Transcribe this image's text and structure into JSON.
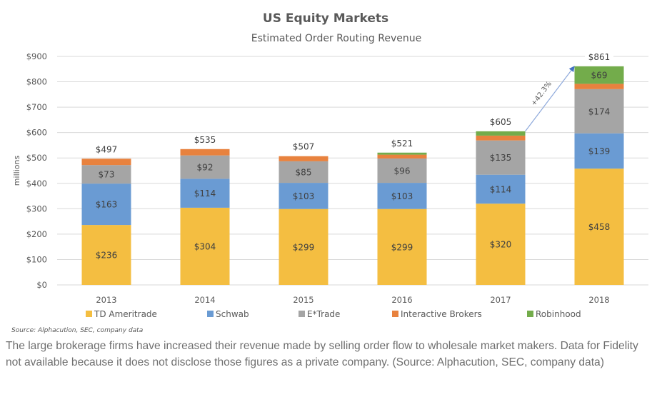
{
  "chart_data": {
    "type": "bar",
    "stacked": true,
    "title": "US Equity Markets",
    "subtitle": "Estimated Order Routing Revenue",
    "xlabel": "",
    "ylabel": "millions",
    "ylim": [
      0,
      900
    ],
    "yticks": [
      0,
      100,
      200,
      300,
      400,
      500,
      600,
      700,
      800,
      900
    ],
    "ytick_labels": [
      "$0",
      "$100",
      "$200",
      "$300",
      "$400",
      "$500",
      "$600",
      "$700",
      "$800",
      "$900"
    ],
    "grid": true,
    "legend_position": "bottom",
    "categories": [
      "2013",
      "2014",
      "2015",
      "2016",
      "2017",
      "2018"
    ],
    "series": [
      {
        "name": "TD Ameritrade",
        "color": "#F4BE41",
        "values": [
          236,
          304,
          299,
          299,
          320,
          458
        ],
        "labels": [
          "$236",
          "$304",
          "$299",
          "$299",
          "$320",
          "$458"
        ]
      },
      {
        "name": "Schwab",
        "color": "#6A9BD3",
        "values": [
          163,
          114,
          103,
          103,
          114,
          139
        ],
        "labels": [
          "$163",
          "$114",
          "$103",
          "$103",
          "$114",
          "$139"
        ]
      },
      {
        "name": "E*Trade",
        "color": "#A5A5A5",
        "values": [
          73,
          92,
          85,
          96,
          135,
          174
        ],
        "labels": [
          "$73",
          "$92",
          "$85",
          "$96",
          "$135",
          "$174"
        ]
      },
      {
        "name": "Interactive Brokers",
        "color": "#E8823E",
        "values": [
          25,
          25,
          20,
          15,
          19,
          21
        ],
        "labels": [
          "",
          "",
          "",
          "",
          "",
          ""
        ]
      },
      {
        "name": "Robinhood",
        "color": "#73AC4B",
        "values": [
          0,
          0,
          0,
          8,
          17,
          69
        ],
        "labels": [
          "",
          "",
          "",
          "",
          "",
          "$69"
        ]
      }
    ],
    "totals": [
      497,
      535,
      507,
      521,
      605,
      861
    ],
    "total_labels": [
      "$497",
      "$535",
      "$507",
      "$521",
      "$605",
      "$861"
    ],
    "annotation": {
      "text": "+42.3%",
      "from_category": "2017",
      "to_category": "2018"
    },
    "source": "Source: Alphacution, SEC, company data"
  },
  "caption": "The large brokerage firms have increased their revenue made by selling order flow to wholesale market makers. Data for Fidelity not available because it does not disclose those figures as a private company. (Source: Alphacution, SEC, company data)"
}
